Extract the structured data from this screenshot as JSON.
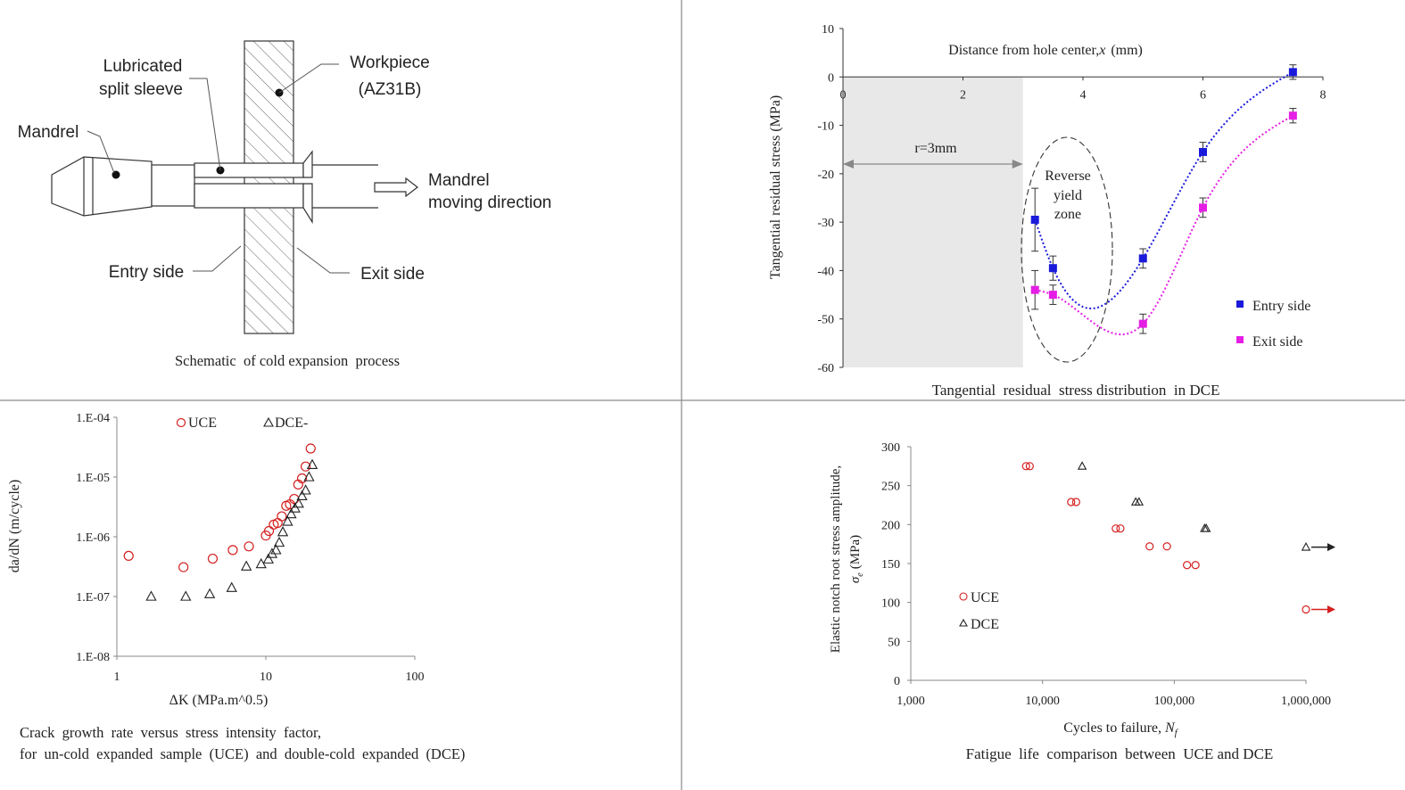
{
  "schematic": {
    "labels": {
      "sleeve_1": "Lubricated",
      "sleeve_2": "split sleeve",
      "workpiece_1": "Workpiece",
      "workpiece_2": "(AZ31B)",
      "mandrel": "Mandrel",
      "moving_1": "Mandrel",
      "moving_2": "moving direction",
      "entry": "Entry side",
      "exit": "Exit side"
    },
    "caption": "Schematic  of cold expansion  process"
  },
  "chart_data": [
    {
      "id": "residual",
      "type": "scatter",
      "caption": "Tangential  residual  stress distribution  in DCE",
      "xlabel": "Distance from hole center,",
      "xlabel_var": "x",
      "xlabel_unit": "(mm)",
      "ylabel": "Tangential residual stress (MPa)",
      "xlim": [
        0,
        8
      ],
      "ylim": [
        -60,
        10
      ],
      "xticks": [
        0,
        2,
        4,
        6,
        8
      ],
      "yticks": [
        10,
        0,
        -10,
        -20,
        -30,
        -40,
        -50,
        -60
      ],
      "annotation_r": "r=3mm",
      "annotation_zone": [
        "Reverse",
        "yield",
        "zone"
      ],
      "legend_position": "bottom-right",
      "series": [
        {
          "name": "Entry side",
          "color": "#1a1adb",
          "x": [
            3.2,
            3.5,
            5.0,
            6.0,
            7.5
          ],
          "y": [
            -29.5,
            -39.5,
            -37.5,
            -15.5,
            1.0
          ],
          "err": [
            6.5,
            2.5,
            2.0,
            2.0,
            1.5
          ]
        },
        {
          "name": "Exit side",
          "color": "#e51ee5",
          "x": [
            3.2,
            3.5,
            5.0,
            6.0,
            7.5
          ],
          "y": [
            -44.0,
            -45.0,
            -51.0,
            -27.0,
            -8.0
          ],
          "err": [
            4.0,
            2.0,
            2.0,
            2.0,
            1.5
          ]
        }
      ]
    },
    {
      "id": "crack",
      "type": "scatter",
      "caption_1": "Crack  growth  rate  versus  stress  intensity  factor,",
      "caption_2": "for  un-cold  expanded  sample  (UCE)  and  double-cold  expanded  (DCE)",
      "xlabel": "ΔK (MPa.m^0.5)",
      "ylabel": "da/dN (m/cycle)",
      "x_scale": "log",
      "y_scale": "log",
      "xlim": [
        1,
        100
      ],
      "ylim": [
        1e-08,
        0.0001
      ],
      "xtick_labels": [
        "1",
        "10",
        "100"
      ],
      "ytick_labels": [
        "1.E-04",
        "1.E-05",
        "1.E-06",
        "1.E-07",
        "1.E-08"
      ],
      "legend_position": "top",
      "series": [
        {
          "name": "UCE",
          "color": "#d42020",
          "marker": "circle",
          "x": [
            1.2,
            2.8,
            4.4,
            6.0,
            7.7,
            10.0,
            10.5,
            11.3,
            12.0,
            12.8,
            13.7,
            14.5,
            15.5,
            16.5,
            17.5,
            18.5,
            20.0
          ],
          "y": [
            4.8e-07,
            3.1e-07,
            4.3e-07,
            6e-07,
            6.9e-07,
            1.05e-06,
            1.25e-06,
            1.6e-06,
            1.7e-06,
            2.2e-06,
            3.3e-06,
            3.5e-06,
            4.3e-06,
            7.5e-06,
            9.5e-06,
            1.5e-05,
            3e-05
          ]
        },
        {
          "name": "DCE-",
          "color": "#222222",
          "marker": "triangle",
          "x": [
            1.7,
            2.9,
            4.2,
            5.9,
            7.4,
            9.3,
            10.4,
            11.0,
            11.7,
            12.3,
            13.0,
            14.0,
            14.8,
            15.7,
            16.6,
            17.5,
            18.5,
            19.5,
            20.5
          ],
          "y": [
            1e-07,
            1e-07,
            1.1e-07,
            1.4e-07,
            3.2e-07,
            3.5e-07,
            4.2e-07,
            5.2e-07,
            6e-07,
            8e-07,
            1.2e-06,
            1.8e-06,
            2.4e-06,
            3e-06,
            3.6e-06,
            4.8e-06,
            6e-06,
            1e-05,
            1.6e-05
          ]
        }
      ]
    },
    {
      "id": "fatigue",
      "type": "scatter",
      "caption": "Fatigue  life  comparison  between  UCE and DCE",
      "xlabel": "Cycles to failure,",
      "xlabel_var": "N",
      "xlabel_sub": "f",
      "ylabel_1": "Elastic notch root stress amplitude,",
      "ylabel_2_var": "σ",
      "ylabel_2_sub": "e",
      "ylabel_2_unit": "(MPa)",
      "x_scale": "log",
      "xlim": [
        1000,
        1000000
      ],
      "ylim": [
        0,
        300
      ],
      "xtick_labels": [
        "1,000",
        "10,000",
        "100,000",
        "1,000,000"
      ],
      "yticks": [
        0,
        50,
        100,
        150,
        200,
        250,
        300
      ],
      "legend_position": "bottom-left",
      "runout_arrows": true,
      "series": [
        {
          "name": "UCE",
          "color": "#d42020",
          "marker": "circle",
          "x": [
            7500,
            8000,
            16500,
            18000,
            36000,
            39000,
            65000,
            88000,
            125000,
            145000,
            1000000
          ],
          "y": [
            275,
            275,
            229,
            229,
            195,
            195,
            172,
            172,
            148,
            148,
            91
          ]
        },
        {
          "name": "DCE",
          "color": "#222222",
          "marker": "triangle",
          "x": [
            20000,
            51000,
            54000,
            170000,
            175000,
            1000000
          ],
          "y": [
            275,
            229,
            229,
            195,
            195,
            171
          ]
        }
      ]
    }
  ]
}
